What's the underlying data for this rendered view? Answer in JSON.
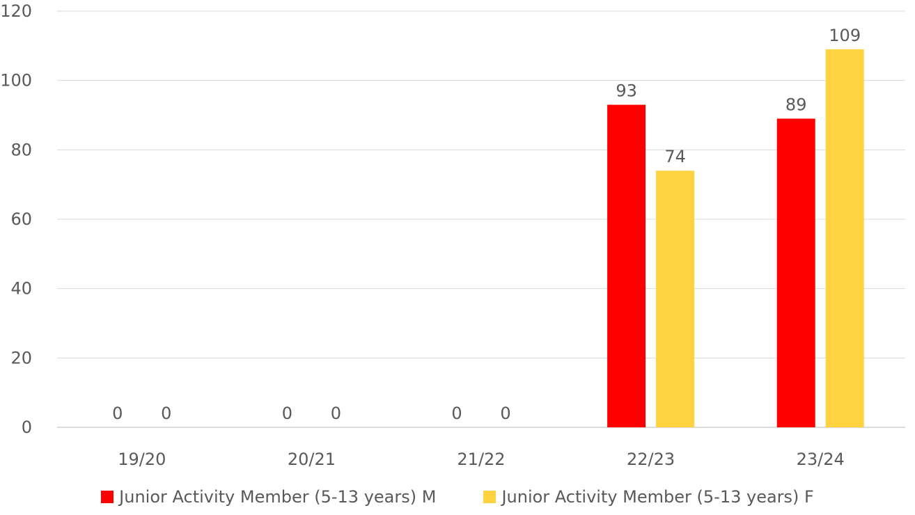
{
  "chart_data": {
    "type": "bar",
    "title": "",
    "xlabel": "",
    "ylabel": "",
    "categories": [
      "19/20",
      "20/21",
      "21/22",
      "22/23",
      "23/24"
    ],
    "series": [
      {
        "name": "Junior Activity Member (5-13 years) M",
        "color": "#ff0000",
        "values": [
          0,
          0,
          0,
          93,
          89
        ]
      },
      {
        "name": "Junior Activity Member (5-13 years) F",
        "color": "#ffd23f",
        "values": [
          0,
          0,
          0,
          74,
          109
        ]
      }
    ],
    "ylim": [
      0,
      120
    ],
    "y_ticks": [
      0,
      20,
      40,
      60,
      80,
      100,
      120
    ],
    "data_labels": true,
    "grid": true,
    "legend_position": "bottom"
  }
}
